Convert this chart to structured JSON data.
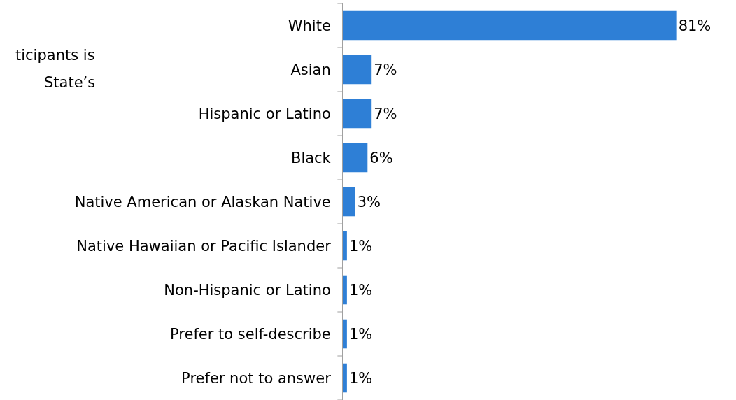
{
  "chart_data": {
    "type": "bar",
    "orientation": "horizontal",
    "categories": [
      "White",
      "Asian",
      "Hispanic or Latino",
      "Black",
      "Native American or Alaskan Native",
      "Native Hawaiian or Pacific Islander",
      "Non-Hispanic or Latino",
      "Prefer to self-describe",
      "Prefer not to answer"
    ],
    "values": [
      81,
      7,
      7,
      6,
      3,
      1,
      1,
      1,
      1
    ],
    "value_labels": [
      "81%",
      "7%",
      "7%",
      "6%",
      "3%",
      "1%",
      "1%",
      "1%",
      "1%"
    ],
    "color": "#2e7fd6",
    "annotations": [
      "ticipants is",
      "State’s"
    ],
    "legend": false,
    "tick_labels": "y"
  }
}
